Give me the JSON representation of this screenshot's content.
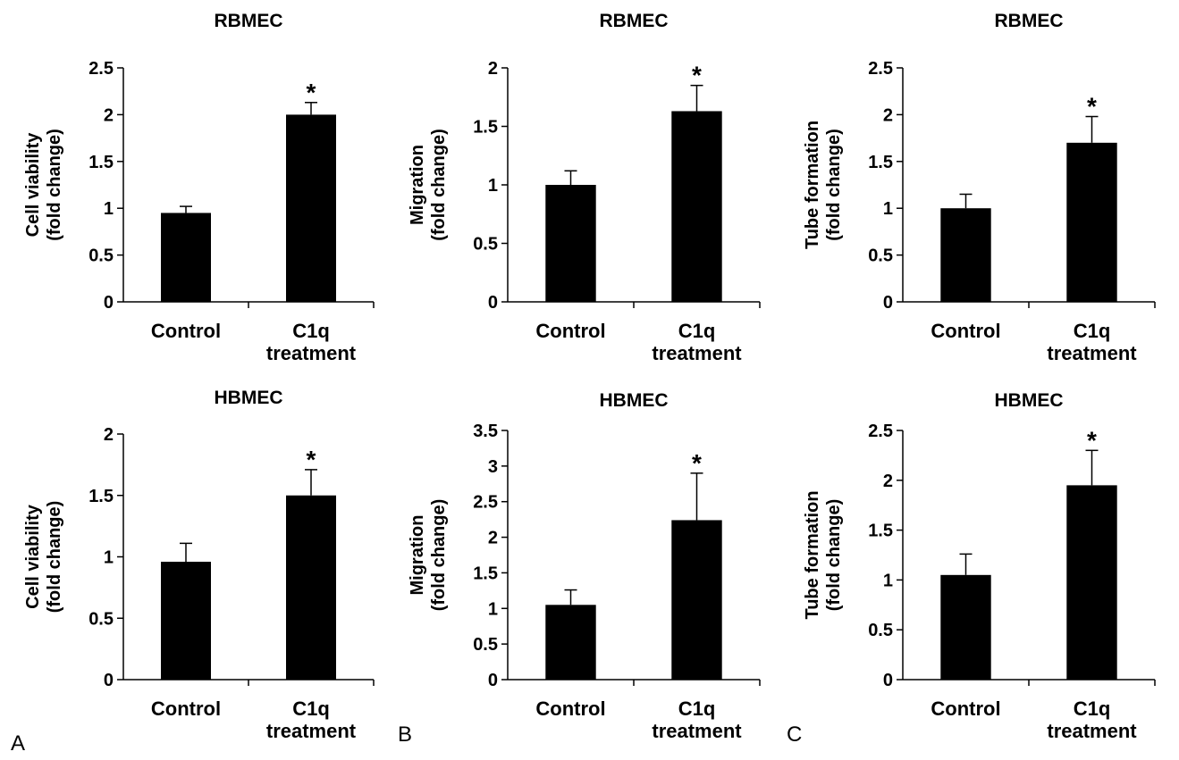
{
  "chart_data": [
    {
      "type": "bar",
      "title": "RBMEC",
      "ylabel": [
        "Cell viability",
        "(fold change)"
      ],
      "categories": [
        [
          "Control"
        ],
        [
          "C1q",
          "treatment"
        ]
      ],
      "values": [
        0.95,
        2.0
      ],
      "errors": [
        0.07,
        0.13
      ],
      "significance": [
        "",
        "*"
      ],
      "yticks": [
        "0",
        "0.5",
        "1",
        "1.5",
        "2",
        "2.5"
      ],
      "ylim": [
        0,
        2.5
      ]
    },
    {
      "type": "bar",
      "title": "RBMEC",
      "ylabel": [
        "Migration",
        "(fold change)"
      ],
      "categories": [
        [
          "Control"
        ],
        [
          "C1q",
          "treatment"
        ]
      ],
      "values": [
        1.0,
        1.63
      ],
      "errors": [
        0.12,
        0.22
      ],
      "significance": [
        "",
        "*"
      ],
      "yticks": [
        "0",
        "0.5",
        "1",
        "1.5",
        "2"
      ],
      "ylim": [
        0,
        2
      ]
    },
    {
      "type": "bar",
      "title": "RBMEC",
      "ylabel": [
        "Tube formation",
        "(fold change)"
      ],
      "categories": [
        [
          "Control"
        ],
        [
          "C1q",
          "treatment"
        ]
      ],
      "values": [
        1.0,
        1.7
      ],
      "errors": [
        0.15,
        0.28
      ],
      "significance": [
        "",
        "*"
      ],
      "yticks": [
        "0",
        "0.5",
        "1",
        "1.5",
        "2",
        "2.5"
      ],
      "ylim": [
        0,
        2.5
      ]
    },
    {
      "type": "bar",
      "title": "HBMEC",
      "ylabel": [
        "Cell viability",
        "(fold change)"
      ],
      "categories": [
        [
          "Control"
        ],
        [
          "C1q",
          "treatment"
        ]
      ],
      "values": [
        0.96,
        1.5
      ],
      "errors": [
        0.15,
        0.21
      ],
      "significance": [
        "",
        "*"
      ],
      "yticks": [
        "0",
        "0.5",
        "1",
        "1.5",
        "2"
      ],
      "ylim": [
        0,
        2
      ]
    },
    {
      "type": "bar",
      "title": "HBMEC",
      "ylabel": [
        "Migration",
        "(fold change)"
      ],
      "categories": [
        [
          "Control"
        ],
        [
          "C1q",
          "treatment"
        ]
      ],
      "values": [
        1.05,
        2.24
      ],
      "errors": [
        0.21,
        0.66
      ],
      "significance": [
        "",
        "*"
      ],
      "yticks": [
        "0",
        "0.5",
        "1",
        "1.5",
        "2",
        "2.5",
        "3",
        "3.5"
      ],
      "ylim": [
        0,
        3.5
      ]
    },
    {
      "type": "bar",
      "title": "HBMEC",
      "ylabel": [
        "Tube formation",
        "(fold change)"
      ],
      "categories": [
        [
          "Control"
        ],
        [
          "C1q",
          "treatment"
        ]
      ],
      "values": [
        1.05,
        1.95
      ],
      "errors": [
        0.21,
        0.35
      ],
      "significance": [
        "",
        "*"
      ],
      "yticks": [
        "0",
        "0.5",
        "1",
        "1.5",
        "2",
        "2.5"
      ],
      "ylim": [
        0,
        2.5
      ]
    }
  ],
  "panel_labels": [
    "A",
    "B",
    "C"
  ],
  "colors": {
    "bar": "#000000",
    "axis": "#000000",
    "background": "#ffffff"
  }
}
